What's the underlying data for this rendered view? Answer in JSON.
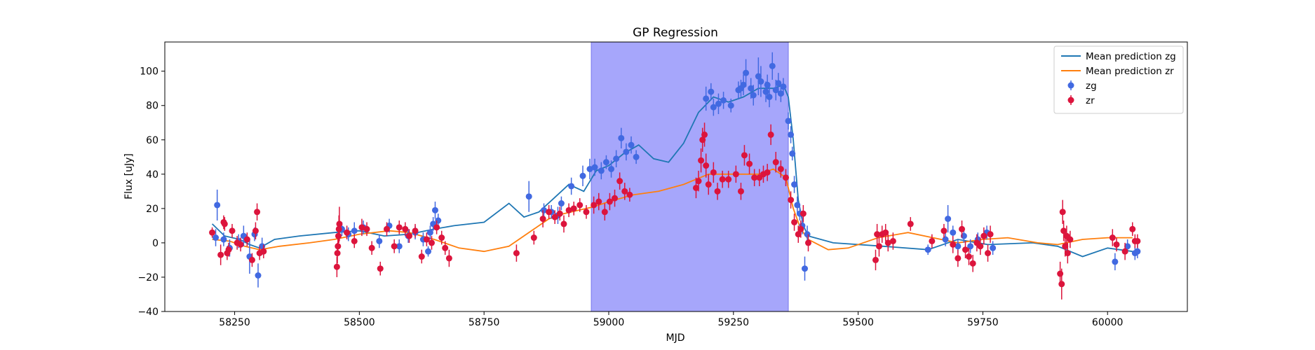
{
  "chart_data": {
    "type": "scatter",
    "title": "GP Regression",
    "xlabel": "MJD",
    "ylabel": "Flux [uJy]",
    "xlim": [
      58110,
      60160
    ],
    "ylim": [
      -40,
      117
    ],
    "xticks": [
      58250,
      58500,
      58750,
      59000,
      59250,
      59500,
      59750,
      60000
    ],
    "yticks": [
      -40,
      -20,
      0,
      20,
      40,
      60,
      80,
      100
    ],
    "grid": false,
    "legend_position": "upper-right",
    "highlight_span": {
      "x0": 58965,
      "x1": 59360,
      "color": "#a6a6fb"
    },
    "series": [
      {
        "name": "Mean prediction zg",
        "kind": "line",
        "color": "#1f77b4",
        "x": [
          58205,
          58230,
          58260,
          58280,
          58300,
          58330,
          58380,
          58450,
          58500,
          58550,
          58600,
          58650,
          58690,
          58750,
          58800,
          58830,
          58860,
          58890,
          58920,
          58950,
          58975,
          59000,
          59030,
          59060,
          59090,
          59120,
          59150,
          59180,
          59210,
          59240,
          59270,
          59300,
          59330,
          59350,
          59360,
          59370,
          59380,
          59390,
          59400,
          59450,
          59550,
          59640,
          59700,
          59760,
          59850,
          59900,
          59950,
          60000,
          60050
        ],
        "y": [
          11,
          4,
          2,
          -1,
          -3,
          2,
          4,
          6,
          7,
          4,
          5,
          8,
          10,
          12,
          23,
          15,
          18,
          26,
          34,
          30,
          42,
          45,
          52,
          57,
          49,
          47,
          58,
          76,
          85,
          82,
          85,
          90,
          90,
          92,
          85,
          60,
          25,
          10,
          4,
          0,
          -2,
          -4,
          2,
          -1,
          0,
          -2,
          -8,
          -3,
          -5
        ]
      },
      {
        "name": "Mean prediction zr",
        "kind": "line",
        "color": "#ff7f0e",
        "x": [
          58205,
          58240,
          58270,
          58300,
          58340,
          58400,
          58450,
          58500,
          58560,
          58600,
          58650,
          58700,
          58750,
          58800,
          58850,
          58880,
          58910,
          58940,
          58970,
          59000,
          59050,
          59100,
          59150,
          59200,
          59250,
          59300,
          59330,
          59355,
          59370,
          59385,
          59400,
          59440,
          59480,
          59540,
          59600,
          59650,
          59700,
          59750,
          59800,
          59860,
          59900,
          59950,
          60000,
          60050
        ],
        "y": [
          2,
          1,
          -2,
          -4,
          -2,
          0,
          2,
          5,
          7,
          6,
          2,
          -3,
          -5,
          -2,
          8,
          14,
          17,
          19,
          21,
          24,
          28,
          30,
          34,
          40,
          40,
          40,
          43,
          38,
          20,
          8,
          2,
          -4,
          -3,
          3,
          6,
          3,
          0,
          2,
          3,
          0,
          -1,
          2,
          3,
          3
        ]
      },
      {
        "name": "zg",
        "kind": "errorbar",
        "color": "#4169e1",
        "x": [
          58212,
          58215,
          58228,
          58240,
          58258,
          58268,
          58280,
          58290,
          58297,
          58305,
          58465,
          58478,
          58490,
          58508,
          58540,
          58560,
          58580,
          58598,
          58612,
          58628,
          58638,
          58642,
          58648,
          58652,
          58658,
          58840,
          58870,
          58885,
          58898,
          58905,
          58925,
          58948,
          58962,
          58972,
          58985,
          58995,
          59005,
          59015,
          59025,
          59035,
          59045,
          59055,
          59195,
          59205,
          59210,
          59220,
          59230,
          59245,
          59260,
          59265,
          59270,
          59275,
          59285,
          59290,
          59300,
          59305,
          59315,
          59318,
          59322,
          59328,
          59335,
          59340,
          59345,
          59350,
          59360,
          59365,
          59368,
          59372,
          59378,
          59383,
          59388,
          59393,
          59398,
          59640,
          59675,
          59680,
          59690,
          59700,
          59712,
          59725,
          59740,
          59758,
          59770,
          60015,
          60040,
          60055,
          60060
        ],
        "y": [
          3,
          22,
          2,
          -3,
          1,
          4,
          -8,
          5,
          -19,
          -2,
          8,
          5,
          7,
          9,
          1,
          10,
          -2,
          4,
          6,
          2,
          -5,
          6,
          11,
          19,
          13,
          27,
          19,
          18,
          16,
          23,
          33,
          39,
          43,
          44,
          42,
          47,
          43,
          49,
          61,
          53,
          57,
          50,
          84,
          88,
          79,
          81,
          83,
          80,
          89,
          90,
          92,
          99,
          90,
          86,
          97,
          94,
          88,
          92,
          85,
          103,
          89,
          93,
          87,
          91,
          71,
          63,
          52,
          34,
          22,
          17,
          10,
          -15,
          5,
          -4,
          2,
          14,
          6,
          -2,
          4,
          -2,
          2,
          6,
          -3,
          -11,
          -2,
          -6,
          -5
        ],
        "yerr": [
          5,
          9,
          4,
          5,
          4,
          6,
          10,
          4,
          7,
          5,
          4,
          4,
          5,
          4,
          4,
          4,
          4,
          4,
          4,
          4,
          3,
          4,
          4,
          5,
          4,
          9,
          4,
          4,
          5,
          4,
          5,
          6,
          6,
          5,
          5,
          4,
          5,
          5,
          6,
          5,
          5,
          4,
          7,
          5,
          5,
          6,
          5,
          4,
          5,
          5,
          6,
          8,
          6,
          6,
          11,
          9,
          6,
          6,
          6,
          8,
          6,
          6,
          5,
          5,
          5,
          5,
          4,
          5,
          5,
          4,
          5,
          7,
          5,
          3,
          4,
          8,
          4,
          4,
          4,
          4,
          4,
          4,
          4,
          5,
          4,
          4,
          4
        ]
      },
      {
        "name": "zr",
        "kind": "errorbar",
        "color": "#dc143c",
        "x": [
          58205,
          58222,
          58228,
          58230,
          58235,
          58238,
          58245,
          58255,
          58262,
          58275,
          58285,
          58292,
          58295,
          58300,
          58308,
          58455,
          58456,
          58457,
          58458,
          58459,
          58460,
          58475,
          58490,
          58505,
          58515,
          58525,
          58542,
          58555,
          58570,
          58580,
          58592,
          58600,
          58612,
          58625,
          58635,
          58645,
          58655,
          58665,
          58672,
          58680,
          58815,
          58850,
          58868,
          58880,
          58892,
          58902,
          58910,
          58920,
          58930,
          58942,
          58955,
          58970,
          58980,
          58992,
          59002,
          59012,
          59022,
          59032,
          59042,
          59175,
          59180,
          59185,
          59188,
          59192,
          59195,
          59200,
          59210,
          59218,
          59228,
          59240,
          59255,
          59265,
          59272,
          59282,
          59292,
          59302,
          59310,
          59318,
          59325,
          59335,
          59345,
          59355,
          59365,
          59372,
          59380,
          59385,
          59390,
          59400,
          59535,
          59538,
          59542,
          59548,
          59555,
          59560,
          59570,
          59605,
          59648,
          59672,
          59690,
          59700,
          59708,
          59715,
          59722,
          59730,
          59738,
          59745,
          59752,
          59760,
          59765,
          59905,
          59908,
          59910,
          59912,
          59915,
          59918,
          59920,
          59925,
          60010,
          60018,
          60035,
          60050,
          60055,
          60060
        ],
        "y": [
          6,
          -7,
          12,
          11,
          -6,
          -4,
          7,
          0,
          -1,
          2,
          -10,
          7,
          18,
          -6,
          -5,
          -14,
          -6,
          -2,
          4,
          8,
          11,
          6,
          1,
          9,
          8,
          -3,
          -15,
          8,
          -2,
          9,
          8,
          4,
          7,
          -8,
          2,
          0,
          9,
          3,
          -3,
          -9,
          -6,
          3,
          14,
          18,
          15,
          17,
          11,
          19,
          20,
          22,
          18,
          22,
          24,
          18,
          24,
          26,
          36,
          30,
          28,
          32,
          36,
          48,
          60,
          63,
          45,
          34,
          41,
          30,
          37,
          37,
          40,
          30,
          51,
          46,
          38,
          38,
          40,
          41,
          63,
          47,
          43,
          38,
          25,
          12,
          5,
          8,
          17,
          0,
          -10,
          5,
          -2,
          5,
          6,
          0,
          1,
          11,
          1,
          7,
          -1,
          -9,
          8,
          -4,
          -8,
          -12,
          0,
          -2,
          4,
          -6,
          5,
          -18,
          -24,
          18,
          7,
          -2,
          4,
          -6,
          2,
          3,
          -1,
          -5,
          8,
          1,
          1
        ],
        "yerr": [
          3,
          6,
          4,
          4,
          4,
          4,
          4,
          4,
          4,
          4,
          4,
          5,
          5,
          4,
          4,
          6,
          6,
          5,
          6,
          8,
          10,
          4,
          4,
          5,
          4,
          4,
          4,
          4,
          4,
          4,
          4,
          4,
          4,
          4,
          4,
          4,
          4,
          4,
          4,
          5,
          5,
          4,
          5,
          4,
          4,
          4,
          5,
          4,
          4,
          4,
          4,
          5,
          5,
          5,
          5,
          5,
          5,
          5,
          4,
          6,
          6,
          7,
          7,
          7,
          7,
          6,
          6,
          5,
          5,
          5,
          5,
          5,
          6,
          6,
          5,
          5,
          5,
          5,
          6,
          6,
          5,
          5,
          5,
          5,
          5,
          5,
          5,
          5,
          6,
          6,
          6,
          5,
          5,
          5,
          5,
          4,
          4,
          4,
          5,
          5,
          5,
          5,
          5,
          5,
          5,
          5,
          5,
          5,
          5,
          7,
          9,
          7,
          6,
          6,
          6,
          6,
          5,
          5,
          4,
          5,
          4,
          4,
          4
        ]
      }
    ]
  }
}
